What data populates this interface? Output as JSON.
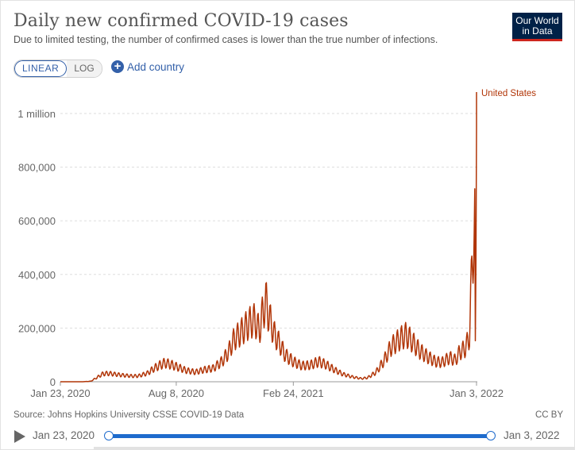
{
  "header": {
    "title": "Daily new confirmed COVID-19 cases",
    "subtitle": "Due to limited testing, the number of confirmed cases is lower than the true number of infections.",
    "logo_line1": "Our World",
    "logo_line2": "in Data"
  },
  "controls": {
    "scale_linear": "LINEAR",
    "scale_log": "LOG",
    "add_country": "Add country",
    "active_scale": "LINEAR"
  },
  "footer": {
    "source": "Source: Johns Hopkins University CSSE COVID-19 Data",
    "license": "CC BY"
  },
  "timeline": {
    "start_label": "Jan 23, 2020",
    "end_label": "Jan 3, 2022"
  },
  "colors": {
    "series": "#b13507",
    "accent": "#3360a9",
    "slider": "#1e6bcd",
    "logo_bg": "#002147",
    "logo_stripe": "#ce261e"
  },
  "chart_data": {
    "type": "line",
    "title": "Daily new confirmed COVID-19 cases",
    "xlabel": "",
    "ylabel": "",
    "x_ticks": [
      "Jan 23, 2020",
      "Aug 8, 2020",
      "Feb 24, 2021",
      "Jan 3, 2022"
    ],
    "y_ticks": [
      0,
      200000,
      400000,
      600000,
      800000,
      1000000
    ],
    "y_tick_labels": [
      "0",
      "200,000",
      "400,000",
      "600,000",
      "800,000",
      "1 million"
    ],
    "ylim": [
      0,
      1000000
    ],
    "xlim": [
      "2020-01-23",
      "2022-01-03"
    ],
    "grid": "horizontal dashed",
    "series": [
      {
        "name": "United States",
        "points": [
          [
            "2020-01-23",
            0
          ],
          [
            "2020-03-01",
            0
          ],
          [
            "2020-03-15",
            2000
          ],
          [
            "2020-03-25",
            15000
          ],
          [
            "2020-04-05",
            30000
          ],
          [
            "2020-04-15",
            31000
          ],
          [
            "2020-04-25",
            28000
          ],
          [
            "2020-05-10",
            24000
          ],
          [
            "2020-05-25",
            21000
          ],
          [
            "2020-06-05",
            22000
          ],
          [
            "2020-06-20",
            32000
          ],
          [
            "2020-07-01",
            50000
          ],
          [
            "2020-07-12",
            63000
          ],
          [
            "2020-07-20",
            70000
          ],
          [
            "2020-07-30",
            64000
          ],
          [
            "2020-08-10",
            55000
          ],
          [
            "2020-08-25",
            42000
          ],
          [
            "2020-09-10",
            36000
          ],
          [
            "2020-09-25",
            45000
          ],
          [
            "2020-10-10",
            50000
          ],
          [
            "2020-10-25",
            75000
          ],
          [
            "2020-11-05",
            110000
          ],
          [
            "2020-11-15",
            160000
          ],
          [
            "2020-11-25",
            180000
          ],
          [
            "2020-12-05",
            205000
          ],
          [
            "2020-12-12",
            220000
          ],
          [
            "2020-12-20",
            230000
          ],
          [
            "2020-12-28",
            190000
          ],
          [
            "2021-01-03",
            260000
          ],
          [
            "2021-01-08",
            300000
          ],
          [
            "2021-01-14",
            240000
          ],
          [
            "2021-01-22",
            180000
          ],
          [
            "2021-02-01",
            140000
          ],
          [
            "2021-02-10",
            100000
          ],
          [
            "2021-02-24",
            75000
          ],
          [
            "2021-03-10",
            60000
          ],
          [
            "2021-03-25",
            62000
          ],
          [
            "2021-04-08",
            75000
          ],
          [
            "2021-04-20",
            65000
          ],
          [
            "2021-05-05",
            45000
          ],
          [
            "2021-05-20",
            28000
          ],
          [
            "2021-06-05",
            18000
          ],
          [
            "2021-06-20",
            12000
          ],
          [
            "2021-07-01",
            15000
          ],
          [
            "2021-07-15",
            35000
          ],
          [
            "2021-07-28",
            75000
          ],
          [
            "2021-08-10",
            130000
          ],
          [
            "2021-08-25",
            160000
          ],
          [
            "2021-09-05",
            175000
          ],
          [
            "2021-09-15",
            150000
          ],
          [
            "2021-09-28",
            115000
          ],
          [
            "2021-10-10",
            95000
          ],
          [
            "2021-10-25",
            75000
          ],
          [
            "2021-11-05",
            72000
          ],
          [
            "2021-11-18",
            90000
          ],
          [
            "2021-11-28",
            80000
          ],
          [
            "2021-12-05",
            110000
          ],
          [
            "2021-12-15",
            125000
          ],
          [
            "2021-12-22",
            170000
          ],
          [
            "2021-12-27",
            480000
          ],
          [
            "2021-12-29",
            530000
          ],
          [
            "2021-12-31",
            590000
          ],
          [
            "2022-01-01",
            120000
          ],
          [
            "2022-01-02",
            400000
          ],
          [
            "2022-01-03",
            1080000
          ]
        ]
      }
    ]
  }
}
